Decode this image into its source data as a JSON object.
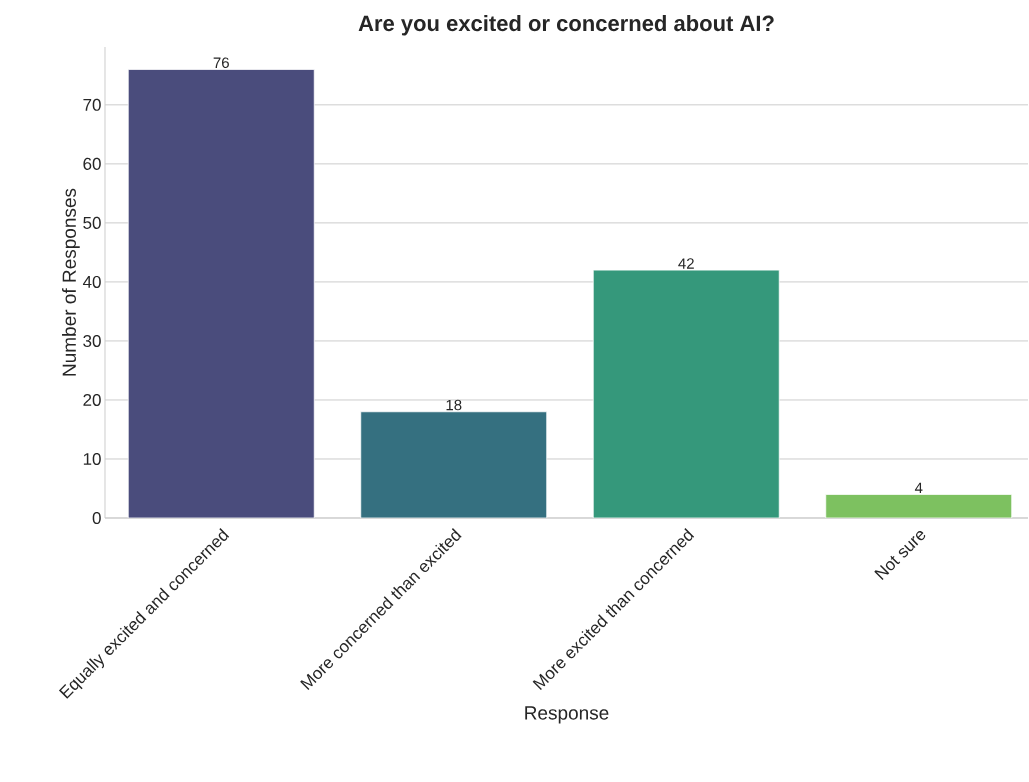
{
  "chart_data": {
    "type": "bar",
    "title": "Are you excited or concerned about AI?",
    "xlabel": "Response",
    "ylabel": "Number of Responses",
    "categories": [
      "Equally excited and concerned",
      "More concerned than excited",
      "More excited than concerned",
      "Not sure"
    ],
    "values": [
      76,
      18,
      42,
      4
    ],
    "colors": [
      "#4a4c7c",
      "#357080",
      "#35987b",
      "#7dc160"
    ],
    "ylim": [
      0,
      79.8
    ],
    "yticks": [
      0,
      10,
      20,
      30,
      40,
      50,
      60,
      70
    ],
    "grid": "y",
    "data_labels": true
  }
}
